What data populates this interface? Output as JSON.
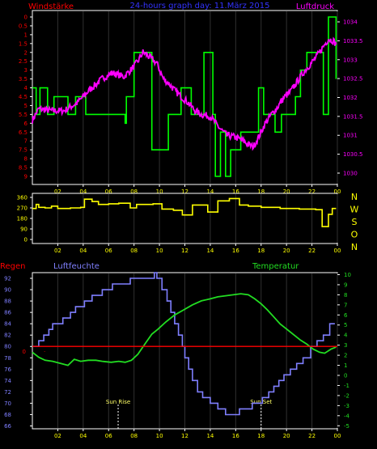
{
  "header": {
    "left_label": "Windstärke",
    "center_title": "24-hours graph day: 11.März 2015",
    "right_label": "Luftdruck"
  },
  "colors": {
    "background": "#000000",
    "frame": "#ffffff",
    "wind_speed": "#00ff00",
    "pressure": "#ff00ff",
    "wind_dir": "#ffff00",
    "humidity": "#7f7fff",
    "temperature": "#22dd22",
    "rain": "#ff0000",
    "grid": "#303030",
    "left_label": "#ff0000",
    "title": "#3333ff",
    "dir_axis": "#ffff00"
  },
  "x_ticks": [
    "02",
    "04",
    "06",
    "08",
    "10",
    "12",
    "14",
    "16",
    "18",
    "20",
    "22",
    "00"
  ],
  "lower_panel": {
    "left_label": "Regen",
    "humidity_label": "Luftfeuchte",
    "temperature_label": "Temperatur",
    "sunrise_label": "Sun Rise",
    "sunset_label": "Sun Set"
  },
  "chart_data": [
    {
      "type": "line",
      "title": "24-hours graph day: 11.März 2015",
      "x": "hour of day (0-24)",
      "y_left": {
        "label": "Windstärke",
        "ticks": [
          "0",
          "0.5",
          "1",
          "1.5",
          "2",
          "2.5",
          "3",
          "3.5",
          "4",
          "4.5",
          "5",
          "5.5",
          "6",
          "6.5",
          "7",
          "7.5",
          "8",
          "8.5",
          "9"
        ],
        "ylim": [
          0,
          9
        ]
      },
      "y_right": {
        "label": "Luftdruck",
        "ticks": [
          "1030",
          "1030.5",
          "1031",
          "1031.5",
          "1032",
          "1032.5",
          "1033",
          "1033.5",
          "1034"
        ],
        "ylim": [
          1029.7,
          1034.3
        ]
      },
      "series": [
        {
          "name": "Windstärke",
          "step": true,
          "points": [
            [
              0,
              4
            ],
            [
              0.3,
              5.5
            ],
            [
              0.6,
              4
            ],
            [
              1.1,
              4
            ],
            [
              1.2,
              5.5
            ],
            [
              1.6,
              5.5
            ],
            [
              1.7,
              4.5
            ],
            [
              2.7,
              4.5
            ],
            [
              2.8,
              5.5
            ],
            [
              3.4,
              4.5
            ],
            [
              4.1,
              4.5
            ],
            [
              4.2,
              5.5
            ],
            [
              7.2,
              5.5
            ],
            [
              7.3,
              6
            ],
            [
              7.4,
              4.5
            ],
            [
              7.9,
              4.5
            ],
            [
              8,
              2
            ],
            [
              9.3,
              2
            ],
            [
              9.4,
              7.5
            ],
            [
              10.6,
              7.5
            ],
            [
              10.7,
              5.5
            ],
            [
              11.6,
              5.5
            ],
            [
              11.7,
              4
            ],
            [
              12.4,
              4
            ],
            [
              12.5,
              5.5
            ],
            [
              13.4,
              5.5
            ],
            [
              13.5,
              2
            ],
            [
              14.1,
              2
            ],
            [
              14.2,
              5.5
            ],
            [
              14.4,
              9
            ],
            [
              14.7,
              9
            ],
            [
              14.8,
              6.5
            ],
            [
              15.1,
              6.5
            ],
            [
              15.2,
              9
            ],
            [
              15.5,
              9
            ],
            [
              15.6,
              7.5
            ],
            [
              16.3,
              7.5
            ],
            [
              16.4,
              6.5
            ],
            [
              17.7,
              6.5
            ],
            [
              17.8,
              4
            ],
            [
              18.1,
              4
            ],
            [
              18.2,
              5.5
            ],
            [
              19,
              5.5
            ],
            [
              19.1,
              6.5
            ],
            [
              19.5,
              6.5
            ],
            [
              19.6,
              5.5
            ],
            [
              20.6,
              5.5
            ],
            [
              20.7,
              4.5
            ],
            [
              21,
              4.5
            ],
            [
              21.1,
              3
            ],
            [
              21.5,
              3
            ],
            [
              21.6,
              2
            ],
            [
              22.8,
              2
            ],
            [
              22.9,
              5.5
            ],
            [
              23.2,
              5.5
            ],
            [
              23.3,
              0
            ],
            [
              23.8,
              0
            ],
            [
              23.9,
              3.5
            ]
          ]
        },
        {
          "name": "Luftdruck",
          "points": [
            [
              0,
              1031.4
            ],
            [
              0.5,
              1031.7
            ],
            [
              1.5,
              1031.65
            ],
            [
              2.5,
              1031.65
            ],
            [
              3.5,
              1031.85
            ],
            [
              4.5,
              1032.2
            ],
            [
              5.5,
              1032.5
            ],
            [
              6.3,
              1032.65
            ],
            [
              7.2,
              1032.55
            ],
            [
              7.8,
              1032.75
            ],
            [
              8.3,
              1032.95
            ],
            [
              8.7,
              1033.2
            ],
            [
              9.3,
              1033.05
            ],
            [
              9.8,
              1032.9
            ],
            [
              10.3,
              1032.5
            ],
            [
              10.8,
              1032.35
            ],
            [
              11.3,
              1032.15
            ],
            [
              11.8,
              1032.0
            ],
            [
              12.3,
              1031.85
            ],
            [
              12.8,
              1031.65
            ],
            [
              13.3,
              1031.55
            ],
            [
              14,
              1031.5
            ],
            [
              14.7,
              1031.2
            ],
            [
              15.3,
              1031.0
            ],
            [
              16,
              1030.95
            ],
            [
              16.6,
              1030.85
            ],
            [
              17,
              1030.75
            ],
            [
              17.4,
              1030.7
            ],
            [
              17.8,
              1030.95
            ],
            [
              18.3,
              1031.3
            ],
            [
              18.8,
              1031.55
            ],
            [
              19.3,
              1031.75
            ],
            [
              19.8,
              1032.0
            ],
            [
              20.3,
              1032.15
            ],
            [
              20.8,
              1032.4
            ],
            [
              21.3,
              1032.65
            ],
            [
              21.8,
              1032.85
            ],
            [
              22.3,
              1033.05
            ],
            [
              22.8,
              1033.3
            ],
            [
              23.3,
              1033.55
            ],
            [
              23.7,
              1033.5
            ],
            [
              23.9,
              1033.4
            ]
          ]
        }
      ]
    },
    {
      "type": "line",
      "x": "hour of day (0-24)",
      "y_left": {
        "ticks": [
          "360",
          "270",
          "180",
          "90",
          "0"
        ],
        "ylim": [
          0,
          360
        ]
      },
      "y_right": {
        "ticks": [
          "N",
          "W",
          "S",
          "O",
          "N"
        ]
      },
      "series": [
        {
          "name": "Windrichtung",
          "step": true,
          "points": [
            [
              0,
              265
            ],
            [
              0.3,
              300
            ],
            [
              0.5,
              275
            ],
            [
              1,
              270
            ],
            [
              1.5,
              285
            ],
            [
              2,
              265
            ],
            [
              3,
              270
            ],
            [
              3.8,
              275
            ],
            [
              4.1,
              345
            ],
            [
              4.7,
              325
            ],
            [
              5.2,
              300
            ],
            [
              6,
              305
            ],
            [
              6.8,
              310
            ],
            [
              7.3,
              310
            ],
            [
              7.7,
              270
            ],
            [
              8.2,
              300
            ],
            [
              9.5,
              305
            ],
            [
              10.2,
              260
            ],
            [
              11.1,
              250
            ],
            [
              11.8,
              210
            ],
            [
              12.3,
              210
            ],
            [
              12.6,
              295
            ],
            [
              13.5,
              295
            ],
            [
              13.8,
              235
            ],
            [
              14.4,
              235
            ],
            [
              14.6,
              330
            ],
            [
              15.5,
              350
            ],
            [
              16.3,
              295
            ],
            [
              17,
              285
            ],
            [
              18,
              275
            ],
            [
              19.5,
              265
            ],
            [
              21,
              260
            ],
            [
              22.3,
              255
            ],
            [
              22.7,
              255
            ],
            [
              22.8,
              110
            ],
            [
              23.2,
              110
            ],
            [
              23.3,
              215
            ],
            [
              23.6,
              265
            ],
            [
              23.9,
              265
            ]
          ]
        }
      ]
    },
    {
      "type": "line",
      "x": "hour of day (0-24)",
      "y_left": {
        "label": "Luftfeuchte",
        "ticks": [
          "66",
          "68",
          "70",
          "72",
          "74",
          "76",
          "78",
          "80",
          "82",
          "84",
          "86",
          "88",
          "90",
          "92"
        ],
        "ylim": [
          65.5,
          93
        ]
      },
      "y_right": {
        "label": "Temperatur",
        "ticks": [
          "-5",
          "-4",
          "-3",
          "-2",
          "-1",
          "0",
          "1",
          "2",
          "3",
          "4",
          "5",
          "6",
          "7",
          "8",
          "9",
          "10"
        ],
        "ylim": [
          -5.3,
          10.2
        ]
      },
      "annotations": [
        {
          "label": "Sun Rise",
          "x": 6.75
        },
        {
          "label": "Sun Set",
          "x": 18.0
        }
      ],
      "series": [
        {
          "name": "Luftfeuchte",
          "step": true,
          "points": [
            [
              0,
              80
            ],
            [
              0.5,
              81
            ],
            [
              0.9,
              82
            ],
            [
              1.3,
              83
            ],
            [
              1.6,
              84
            ],
            [
              2.2,
              84
            ],
            [
              2.4,
              85
            ],
            [
              3,
              86
            ],
            [
              3.4,
              87
            ],
            [
              4.1,
              88
            ],
            [
              4.7,
              89
            ],
            [
              5.3,
              89
            ],
            [
              5.5,
              90
            ],
            [
              6.1,
              90
            ],
            [
              6.3,
              91
            ],
            [
              7.5,
              91
            ],
            [
              7.7,
              92
            ],
            [
              9.4,
              92
            ],
            [
              9.6,
              93
            ],
            [
              9.8,
              92
            ],
            [
              10.2,
              90
            ],
            [
              10.6,
              88
            ],
            [
              10.9,
              86
            ],
            [
              11.2,
              84
            ],
            [
              11.5,
              82
            ],
            [
              11.8,
              80
            ],
            [
              12,
              78
            ],
            [
              12.3,
              76
            ],
            [
              12.6,
              74
            ],
            [
              13,
              72
            ],
            [
              13.4,
              71
            ],
            [
              14,
              70
            ],
            [
              14.4,
              70
            ],
            [
              14.6,
              69
            ],
            [
              15.1,
              69
            ],
            [
              15.2,
              68
            ],
            [
              15.8,
              68
            ],
            [
              16.3,
              69
            ],
            [
              17,
              69
            ],
            [
              17.3,
              70
            ],
            [
              17.8,
              70
            ],
            [
              18.1,
              71
            ],
            [
              18.6,
              72
            ],
            [
              19,
              73
            ],
            [
              19.4,
              74
            ],
            [
              19.8,
              75
            ],
            [
              20.3,
              76
            ],
            [
              20.8,
              77
            ],
            [
              21.3,
              78
            ],
            [
              21.9,
              80
            ],
            [
              22.4,
              81
            ],
            [
              22.9,
              82
            ],
            [
              23.4,
              84
            ],
            [
              23.8,
              84
            ]
          ]
        },
        {
          "name": "Temperatur",
          "points": [
            [
              0,
              2.3
            ],
            [
              0.5,
              1.8
            ],
            [
              1,
              1.5
            ],
            [
              1.6,
              1.4
            ],
            [
              2.2,
              1.2
            ],
            [
              2.8,
              1.0
            ],
            [
              3.3,
              1.6
            ],
            [
              3.8,
              1.4
            ],
            [
              4.4,
              1.5
            ],
            [
              5,
              1.5
            ],
            [
              5.5,
              1.4
            ],
            [
              6.2,
              1.3
            ],
            [
              6.8,
              1.4
            ],
            [
              7.3,
              1.3
            ],
            [
              7.8,
              1.5
            ],
            [
              8.3,
              2.1
            ],
            [
              8.9,
              3.2
            ],
            [
              9.4,
              4.1
            ],
            [
              9.9,
              4.6
            ],
            [
              10.5,
              5.3
            ],
            [
              11.2,
              6.0
            ],
            [
              11.9,
              6.5
            ],
            [
              12.6,
              7.0
            ],
            [
              13.3,
              7.4
            ],
            [
              14,
              7.6
            ],
            [
              14.6,
              7.8
            ],
            [
              15.2,
              7.9
            ],
            [
              15.8,
              8.0
            ],
            [
              16.4,
              8.1
            ],
            [
              17,
              8.0
            ],
            [
              17.5,
              7.6
            ],
            [
              18,
              7.1
            ],
            [
              18.5,
              6.5
            ],
            [
              19,
              5.8
            ],
            [
              19.5,
              5.1
            ],
            [
              20,
              4.6
            ],
            [
              20.6,
              4.0
            ],
            [
              21.1,
              3.5
            ],
            [
              21.6,
              3.1
            ],
            [
              22.1,
              2.6
            ],
            [
              22.6,
              2.3
            ],
            [
              23,
              2.2
            ],
            [
              23.5,
              2.6
            ],
            [
              23.9,
              2.8
            ]
          ]
        },
        {
          "name": "Regen",
          "points": [
            [
              0,
              0
            ],
            [
              24,
              0
            ]
          ]
        }
      ]
    }
  ]
}
